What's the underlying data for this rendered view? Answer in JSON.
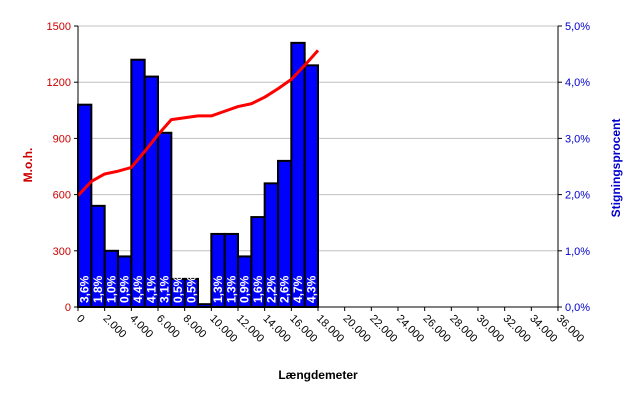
{
  "chart_data": {
    "type": "bar+line",
    "xlabel": "Længdemeter",
    "ylabel_left": "M.o.h.",
    "ylabel_right": "Stigningsprocent",
    "x_ticks": [
      "0",
      "2.000",
      "4.000",
      "6.000",
      "8.000",
      "10.000",
      "12.000",
      "14.000",
      "16.000",
      "18.000",
      "20.000",
      "22.000",
      "24.000",
      "26.000",
      "28.000",
      "30.000",
      "32.000",
      "34.000",
      "36.000"
    ],
    "y_left_ticks": [
      "0",
      "300",
      "600",
      "900",
      "1200",
      "1500"
    ],
    "y_right_ticks": [
      "0,0%",
      "1,0%",
      "2,0%",
      "3,0%",
      "4,0%",
      "5,0%"
    ],
    "ylim_left": [
      0,
      1500
    ],
    "ylim_right": [
      0,
      5.0
    ],
    "xlim": [
      0,
      36000
    ],
    "bar_start": [
      0,
      1000,
      2000,
      3000,
      4000,
      5000,
      6000,
      7000,
      8000,
      9000,
      10000,
      11000,
      12000,
      13000,
      14000,
      15000,
      16000,
      17000
    ],
    "bar_width": 1000,
    "bars": [
      {
        "value": 3.6,
        "label": "3,6%"
      },
      {
        "value": 1.8,
        "label": "1,8%"
      },
      {
        "value": 1.0,
        "label": "1,0%"
      },
      {
        "value": 0.9,
        "label": "0,9%"
      },
      {
        "value": 4.4,
        "label": "4,4%"
      },
      {
        "value": 4.1,
        "label": "4,1%"
      },
      {
        "value": 3.1,
        "label": "3,1%"
      },
      {
        "value": 0.5,
        "label": "0,5%"
      },
      {
        "value": 0.5,
        "label": "0,5%"
      },
      {
        "value": 0.05,
        "label": ""
      },
      {
        "value": 1.3,
        "label": "1,3%"
      },
      {
        "value": 1.3,
        "label": "1,3%"
      },
      {
        "value": 0.9,
        "label": "0,9%"
      },
      {
        "value": 1.6,
        "label": "1,6%"
      },
      {
        "value": 2.2,
        "label": "2,2%"
      },
      {
        "value": 2.6,
        "label": "2,6%"
      },
      {
        "value": 4.7,
        "label": "4,7%"
      },
      {
        "value": 4.3,
        "label": "4,3%"
      }
    ],
    "line": {
      "x": [
        0,
        1000,
        2000,
        3000,
        4000,
        5000,
        6000,
        7000,
        8000,
        9000,
        10000,
        11000,
        12000,
        13000,
        14000,
        15000,
        16000,
        17000,
        18000
      ],
      "y": [
        595,
        670,
        710,
        725,
        745,
        830,
        920,
        1000,
        1010,
        1020,
        1020,
        1045,
        1070,
        1085,
        1120,
        1165,
        1215,
        1290,
        1370
      ]
    },
    "colors": {
      "bar": "#0000ff",
      "line": "#ff0000",
      "left_axis": "#cc0000",
      "right_axis": "#0000cc"
    },
    "grid": "horizontal"
  }
}
